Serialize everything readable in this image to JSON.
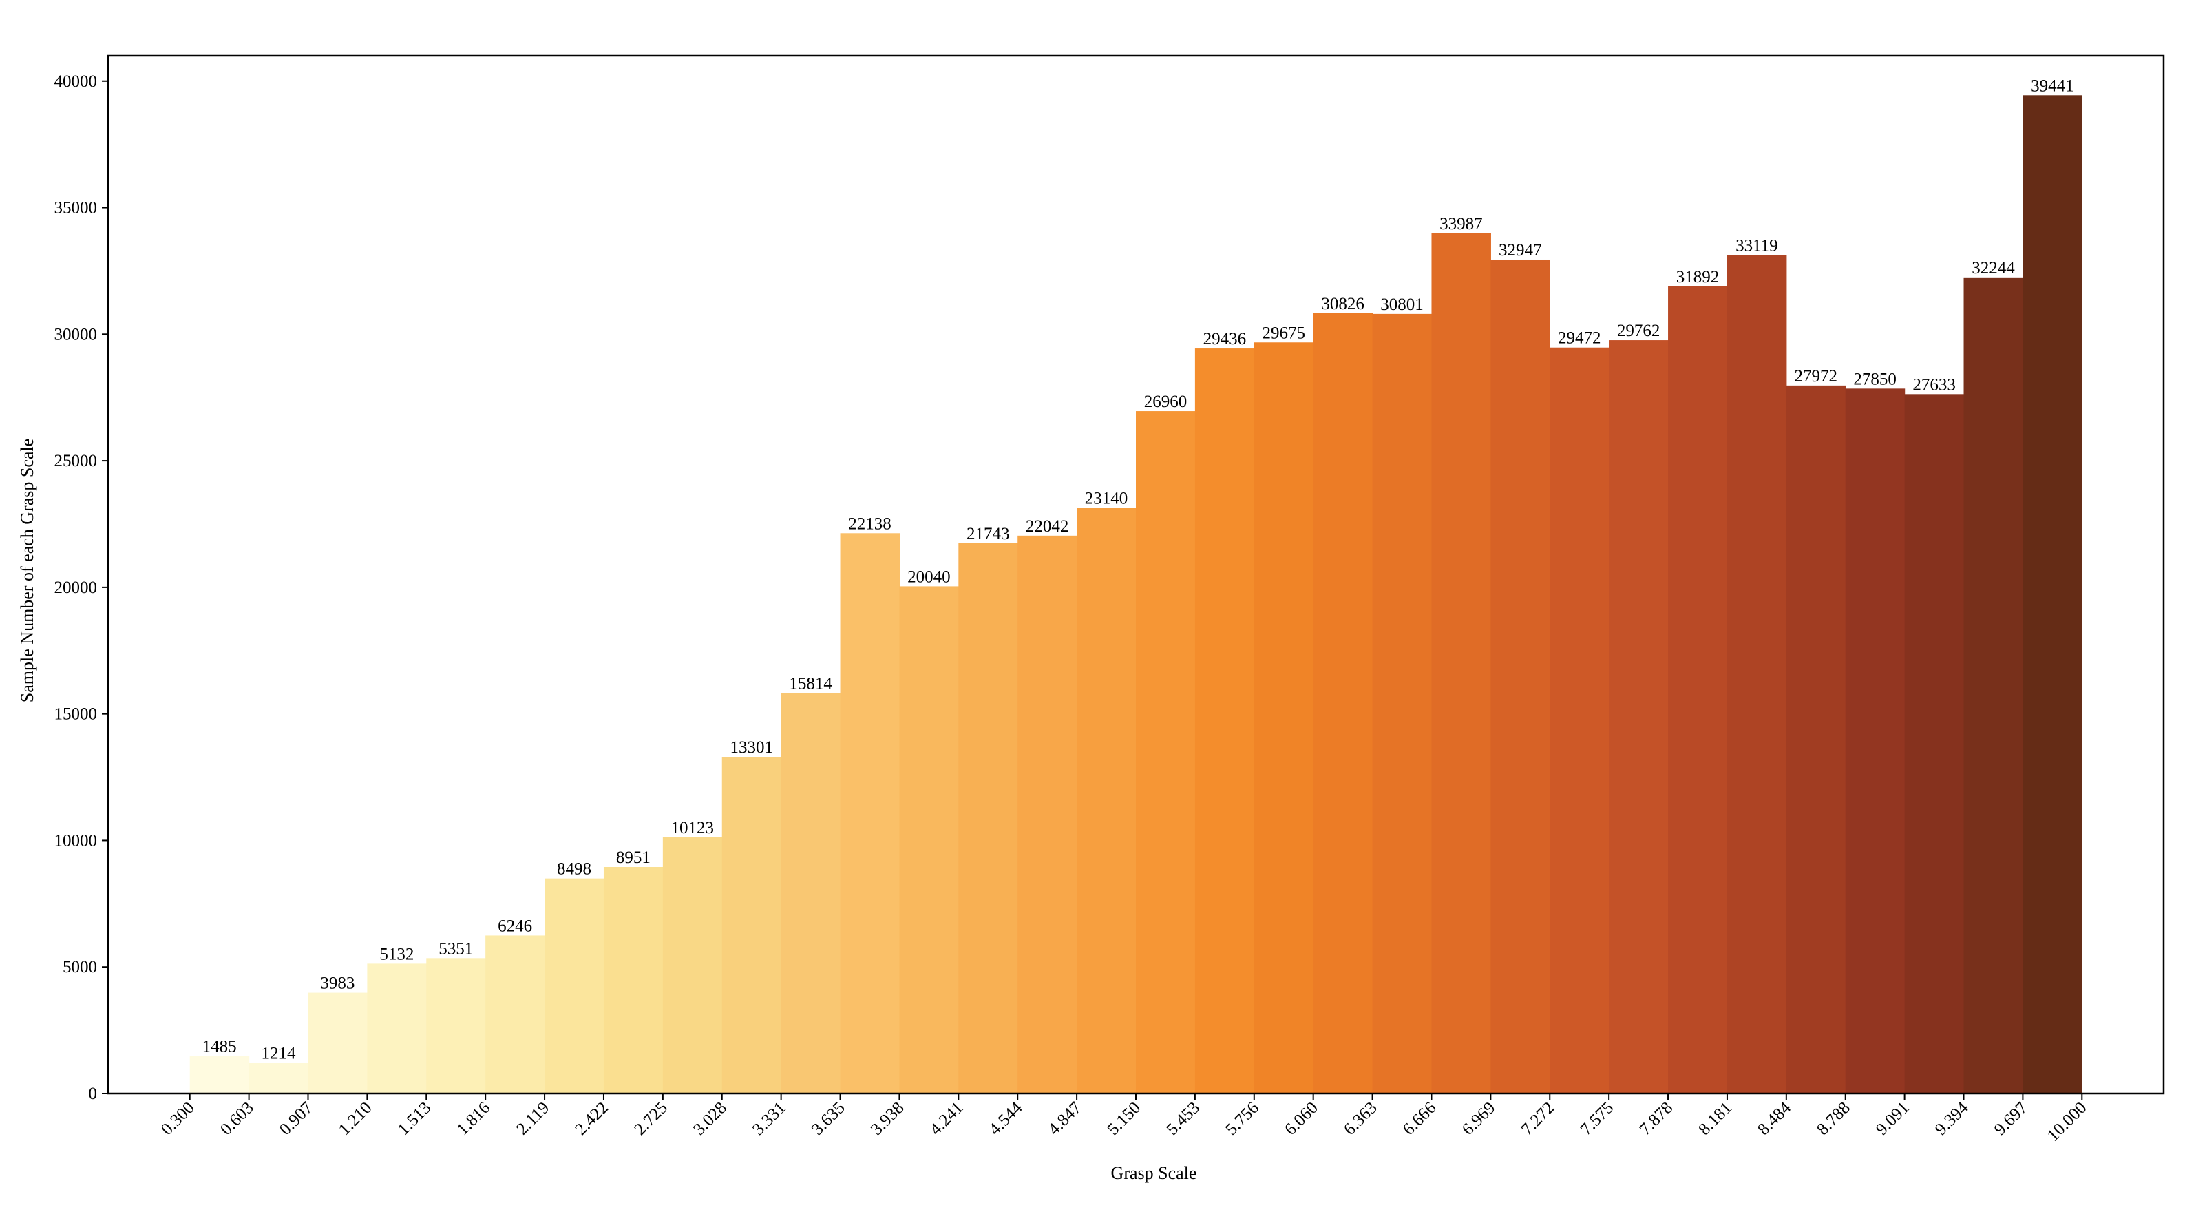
{
  "chart_data": {
    "type": "bar",
    "title": "",
    "xlabel": "Grasp Scale",
    "ylabel": "Sample Number of each Grasp Scale",
    "ylim": [
      0,
      41000
    ],
    "xlim": [
      -0.45,
      10.87
    ],
    "yticks": [
      0,
      5000,
      10000,
      15000,
      20000,
      25000,
      30000,
      35000,
      40000
    ],
    "xticks": [
      "0.300",
      "0.603",
      "0.907",
      "1.210",
      "1.513",
      "1.816",
      "2.119",
      "2.422",
      "2.725",
      "3.028",
      "3.331",
      "3.635",
      "3.938",
      "4.241",
      "4.544",
      "4.847",
      "5.150",
      "5.453",
      "5.756",
      "6.060",
      "6.363",
      "6.666",
      "6.969",
      "7.272",
      "7.575",
      "7.878",
      "8.181",
      "8.484",
      "8.788",
      "9.091",
      "9.394",
      "9.697",
      "10.000"
    ],
    "values": [
      1485,
      1214,
      3983,
      5132,
      5351,
      6246,
      8498,
      8951,
      10123,
      13301,
      15814,
      22138,
      20040,
      21743,
      22042,
      23140,
      26960,
      29436,
      29675,
      30826,
      30801,
      33987,
      32947,
      29472,
      29762,
      31892,
      33119,
      27972,
      27850,
      27633,
      32244,
      39441
    ],
    "colors": [
      "#fffbe0",
      "#fef9d6",
      "#fef6cc",
      "#fdf3c1",
      "#fdf0b6",
      "#fcebaa",
      "#fbe59c",
      "#fadf90",
      "#f9d886",
      "#f9d07c",
      "#f9c772",
      "#fac068",
      "#f9b85d",
      "#f8b053",
      "#f8a749",
      "#f79f3f",
      "#f69635",
      "#f48d2c",
      "#f08427",
      "#ec7c26",
      "#e67426",
      "#e06c26",
      "#d76226",
      "#ce5927",
      "#c45228",
      "#b94a26",
      "#ae4424",
      "#a13d22",
      "#933621",
      "#86321e",
      "#78301b",
      "#652c16"
    ],
    "grid": false,
    "legend": "none"
  }
}
